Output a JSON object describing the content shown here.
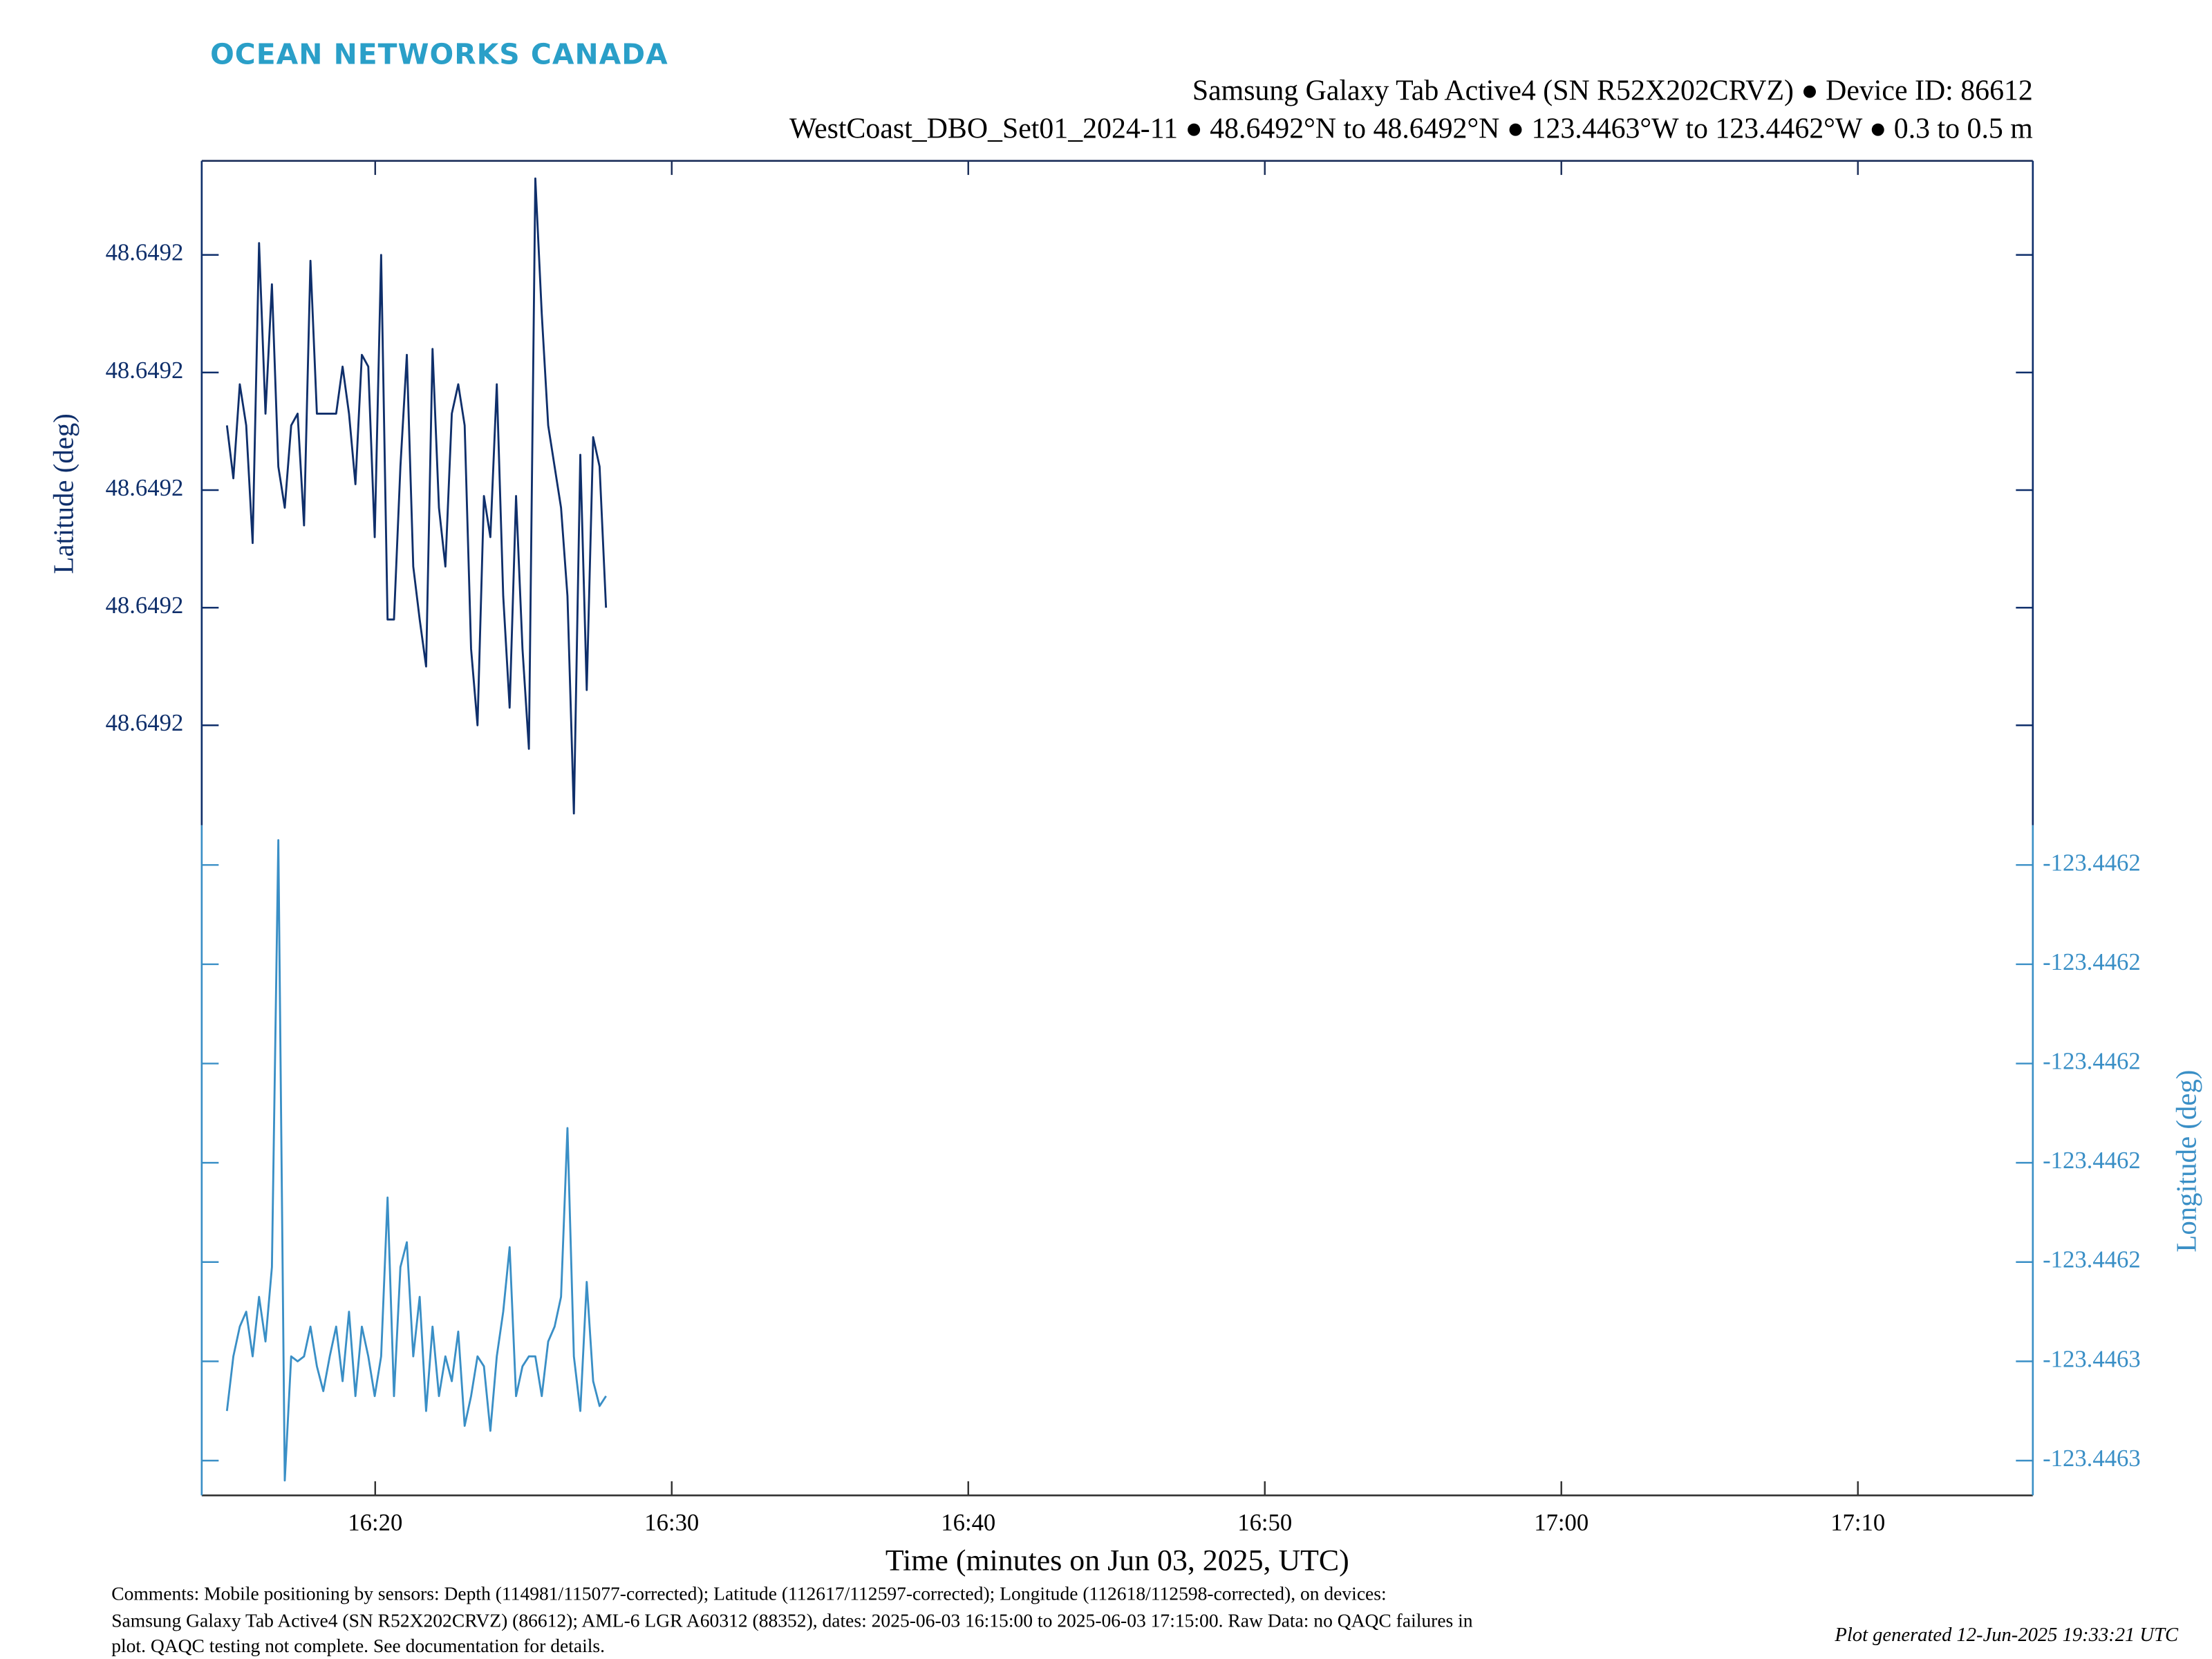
{
  "header": {
    "brand": "OCEAN NETWORKS CANADA"
  },
  "chart_data": {
    "type": "line",
    "title": "Samsung Galaxy Tab Active4 (SN R52X202CRVZ) ● Device ID: 86612",
    "subtitle": "WestCoast_DBO_Set01_2024-11 ● 48.6492°N to 48.6492°N ● 123.4463°W to 123.4462°W ● 0.3 to 0.5 m",
    "x_label": "Time (minutes on Jun 03, 2025, UTC)",
    "y_label": "Latitude (deg)",
    "y2_label": "Longitude (deg)",
    "x": [
      "16:15:00",
      "16:15:13",
      "16:15:26",
      "16:15:39",
      "16:15:52",
      "16:16:05",
      "16:16:18",
      "16:16:31",
      "16:16:44",
      "16:16:57",
      "16:17:10",
      "16:17:23",
      "16:17:36",
      "16:17:49",
      "16:18:02",
      "16:18:15",
      "16:18:28",
      "16:18:41",
      "16:18:54",
      "16:19:07",
      "16:19:20",
      "16:19:33",
      "16:19:46",
      "16:19:59",
      "16:20:12",
      "16:20:25",
      "16:20:38",
      "16:20:51",
      "16:21:04",
      "16:21:17",
      "16:21:30",
      "16:21:43",
      "16:21:56",
      "16:22:09",
      "16:22:22",
      "16:22:35",
      "16:22:48",
      "16:23:01",
      "16:23:14",
      "16:23:27",
      "16:23:40",
      "16:23:53",
      "16:24:06",
      "16:24:19",
      "16:24:32",
      "16:24:45",
      "16:24:58",
      "16:25:11",
      "16:25:24",
      "16:25:37",
      "16:25:50",
      "16:26:03",
      "16:26:16",
      "16:26:29",
      "16:26:42",
      "16:26:55",
      "16:27:08",
      "16:27:21",
      "16:27:34",
      "16:27:47"
    ],
    "xlim": [
      "16:14:09",
      "17:15:54"
    ],
    "xticks": [
      "16:20",
      "16:30",
      "16:40",
      "16:50",
      "17:00",
      "17:10"
    ],
    "ylim": [
      48.6492143,
      48.6492256
    ],
    "yticks": [
      {
        "value": 48.649216,
        "label": "48.6492"
      },
      {
        "value": 48.649218,
        "label": "48.6492"
      },
      {
        "value": 48.64922,
        "label": "48.6492"
      },
      {
        "value": 48.649222,
        "label": "48.6492"
      },
      {
        "value": 48.649224,
        "label": "48.6492"
      }
    ],
    "y2lim": [
      -123.4462537,
      -123.4462402
    ],
    "y2ticks": [
      {
        "value": -123.446253,
        "label": "-123.4463"
      },
      {
        "value": -123.446251,
        "label": "-123.4463"
      },
      {
        "value": -123.446249,
        "label": "-123.4462"
      },
      {
        "value": -123.446247,
        "label": "-123.4462"
      },
      {
        "value": -123.446245,
        "label": "-123.4462"
      },
      {
        "value": -123.446243,
        "label": "-123.4462"
      },
      {
        "value": -123.446241,
        "label": "-123.4462"
      }
    ],
    "series": [
      {
        "name": "Latitude (deg)",
        "color": "#0f2f6b",
        "axis": "y",
        "values": [
          48.6492211,
          48.6492202,
          48.6492218,
          48.6492211,
          48.6492191,
          48.6492242,
          48.6492213,
          48.6492235,
          48.6492204,
          48.6492197,
          48.6492211,
          48.6492213,
          48.6492194,
          48.6492239,
          48.6492213,
          48.6492213,
          48.6492213,
          48.6492213,
          48.6492221,
          48.6492213,
          48.6492201,
          48.6492223,
          48.6492221,
          48.6492192,
          48.649224,
          48.6492178,
          48.6492178,
          48.6492204,
          48.6492223,
          48.6492187,
          48.6492178,
          48.649217,
          48.6492224,
          48.6492197,
          48.6492187,
          48.6492213,
          48.6492218,
          48.6492211,
          48.6492173,
          48.649216,
          48.6492199,
          48.6492192,
          48.6492218,
          48.6492182,
          48.6492163,
          48.6492199,
          48.6492173,
          48.6492156,
          48.6492253,
          48.649223,
          48.6492211,
          48.6492204,
          48.6492197,
          48.6492182,
          48.6492145,
          48.6492206,
          48.6492166,
          48.6492209,
          48.6492204,
          48.649218
        ]
      },
      {
        "name": "Longitude (deg)",
        "color": "#3a8fc6",
        "axis": "y2",
        "values": [
          -123.446252,
          -123.4462509,
          -123.4462503,
          -123.44625,
          -123.4462509,
          -123.4462497,
          -123.4462506,
          -123.4462491,
          -123.4462405,
          -123.4462534,
          -123.4462509,
          -123.446251,
          -123.4462509,
          -123.4462503,
          -123.4462511,
          -123.4462516,
          -123.4462509,
          -123.4462503,
          -123.4462514,
          -123.44625,
          -123.4462517,
          -123.4462503,
          -123.4462509,
          -123.4462517,
          -123.4462509,
          -123.4462477,
          -123.4462517,
          -123.4462491,
          -123.4462486,
          -123.4462509,
          -123.4462497,
          -123.446252,
          -123.4462503,
          -123.4462517,
          -123.4462509,
          -123.4462514,
          -123.4462504,
          -123.4462523,
          -123.4462517,
          -123.4462509,
          -123.4462511,
          -123.4462524,
          -123.4462509,
          -123.44625,
          -123.4462487,
          -123.4462517,
          -123.4462511,
          -123.4462509,
          -123.4462509,
          -123.4462517,
          -123.4462506,
          -123.4462503,
          -123.4462497,
          -123.4462463,
          -123.4462509,
          -123.446252,
          -123.4462494,
          -123.4462514,
          -123.4462519,
          -123.4462517
        ]
      }
    ]
  },
  "footer": {
    "comments": [
      "Comments: Mobile positioning by sensors: Depth (114981/115077-corrected); Latitude (112617/112597-corrected); Longitude (112618/112598-corrected), on devices:",
      "Samsung Galaxy Tab Active4 (SN R52X202CRVZ) (86612); AML-6 LGR A60312 (88352), dates: 2025-06-03 16:15:00 to 2025-06-03 17:15:00. Raw Data: no QAQC failures in",
      "plot. QAQC testing not complete. See documentation for details."
    ],
    "generated": "Plot generated 12-Jun-2025 19:33:21 UTC"
  }
}
